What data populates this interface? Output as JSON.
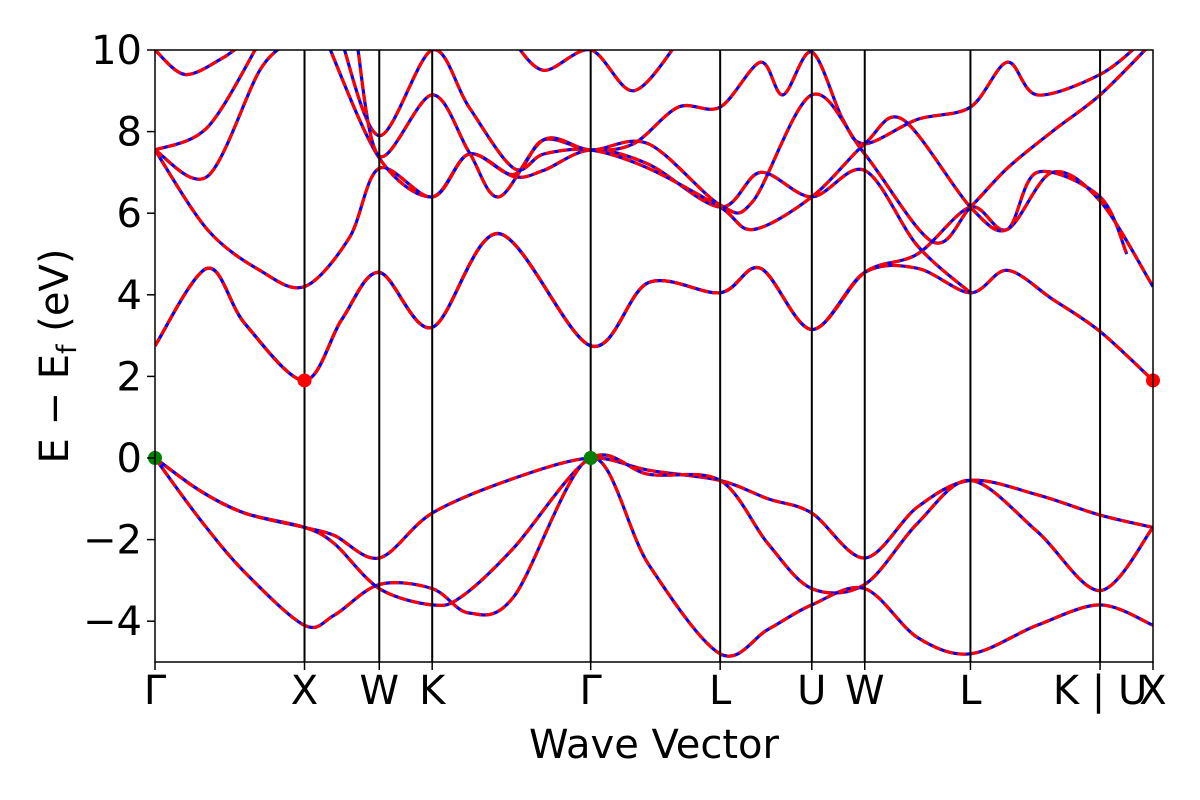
{
  "chart_data": {
    "type": "line",
    "title": "",
    "xlabel": "Wave Vector",
    "ylabel_main": "E − E",
    "ylabel_sub": "f",
    "ylabel_unit": " (eV)",
    "ylim": [
      -5,
      10
    ],
    "yticks": [
      {
        "value": -4,
        "label": "−4"
      },
      {
        "value": -2,
        "label": "−2"
      },
      {
        "value": 0,
        "label": "0"
      },
      {
        "value": 2,
        "label": "2"
      },
      {
        "value": 4,
        "label": "4"
      },
      {
        "value": 6,
        "label": "6"
      },
      {
        "value": 8,
        "label": "8"
      },
      {
        "value": 10,
        "label": "10"
      }
    ],
    "kpath": [
      {
        "label": "Γ",
        "k": 0.0
      },
      {
        "label": "X",
        "k": 1.0
      },
      {
        "label": "W",
        "k": 1.5
      },
      {
        "label": "K",
        "k": 1.854
      },
      {
        "label": "Γ",
        "k": 2.914
      },
      {
        "label": "L",
        "k": 3.78
      },
      {
        "label": "U",
        "k": 4.393
      },
      {
        "label": "W",
        "k": 4.747
      },
      {
        "label": "L",
        "k": 5.454
      },
      {
        "label": "K | U",
        "k": 6.321
      },
      {
        "label": "X",
        "k": 6.675
      }
    ],
    "grid": false,
    "legend": "none",
    "colors": {
      "dft": "#ff0000",
      "fit": "#0000ff",
      "vbm": "#008000",
      "cbm": "#ff0000"
    },
    "markers": [
      {
        "name": "VBM",
        "k": 0.0,
        "e": 0.0
      },
      {
        "name": "VBM",
        "k": 2.914,
        "e": 0.0
      },
      {
        "name": "CBM",
        "k": 1.0,
        "e": 1.9
      },
      {
        "name": "CBM",
        "k": 6.675,
        "e": 1.9
      }
    ],
    "bands": [
      [
        [
          0,
          0
        ],
        [
          0.3,
          -0.8
        ],
        [
          0.6,
          -1.35
        ],
        [
          1.0,
          -1.7
        ],
        [
          1.2,
          -1.9
        ],
        [
          1.5,
          -2.45
        ],
        [
          1.854,
          -1.35
        ],
        [
          2.4,
          -0.5
        ],
        [
          2.914,
          0
        ],
        [
          3.3,
          -0.3
        ],
        [
          3.78,
          -0.55
        ],
        [
          4.1,
          -1.0
        ],
        [
          4.393,
          -1.35
        ],
        [
          4.747,
          -2.45
        ],
        [
          5.1,
          -1.2
        ],
        [
          5.454,
          -0.55
        ],
        [
          5.9,
          -0.9
        ],
        [
          6.321,
          -1.4
        ],
        [
          6.675,
          -1.7
        ]
      ],
      [
        [
          0,
          0
        ],
        [
          0.3,
          -0.8
        ],
        [
          0.6,
          -1.35
        ],
        [
          1.0,
          -1.7
        ],
        [
          1.2,
          -2.1
        ],
        [
          1.5,
          -3.2
        ],
        [
          1.854,
          -3.6
        ],
        [
          2.05,
          -3.4
        ],
        [
          2.4,
          -2.2
        ],
        [
          2.914,
          0
        ],
        [
          3.3,
          -0.4
        ],
        [
          3.78,
          -0.55
        ],
        [
          4.1,
          -2.1
        ],
        [
          4.393,
          -3.2
        ],
        [
          4.747,
          -3.1
        ],
        [
          5.1,
          -1.6
        ],
        [
          5.454,
          -0.55
        ],
        [
          5.9,
          -1.8
        ],
        [
          6.321,
          -3.25
        ],
        [
          6.675,
          -1.7
        ]
      ],
      [
        [
          0,
          0
        ],
        [
          0.3,
          -1.5
        ],
        [
          0.6,
          -2.8
        ],
        [
          1.0,
          -4.1
        ],
        [
          1.2,
          -3.85
        ],
        [
          1.5,
          -3.1
        ],
        [
          1.854,
          -3.2
        ],
        [
          2.1,
          -3.8
        ],
        [
          2.4,
          -3.4
        ],
        [
          2.914,
          0
        ],
        [
          3.3,
          -2.6
        ],
        [
          3.78,
          -4.8
        ],
        [
          4.1,
          -4.2
        ],
        [
          4.393,
          -3.6
        ],
        [
          4.747,
          -3.2
        ],
        [
          5.1,
          -4.4
        ],
        [
          5.454,
          -4.8
        ],
        [
          5.9,
          -4.1
        ],
        [
          6.321,
          -3.6
        ],
        [
          6.675,
          -4.1
        ]
      ],
      [
        [
          0,
          2.75
        ],
        [
          0.35,
          4.65
        ],
        [
          0.6,
          3.3
        ],
        [
          1.0,
          1.9
        ],
        [
          1.25,
          3.4
        ],
        [
          1.5,
          4.55
        ],
        [
          1.854,
          3.2
        ],
        [
          2.3,
          5.5
        ],
        [
          2.914,
          2.75
        ],
        [
          3.3,
          4.3
        ],
        [
          3.78,
          4.05
        ],
        [
          4.05,
          4.65
        ],
        [
          4.393,
          3.15
        ],
        [
          4.747,
          4.55
        ],
        [
          5.1,
          4.65
        ],
        [
          5.454,
          4.05
        ],
        [
          5.7,
          4.6
        ],
        [
          6.0,
          3.9
        ],
        [
          6.321,
          3.1
        ],
        [
          6.675,
          1.9
        ]
      ],
      [
        [
          0,
          2.75
        ],
        [
          0.35,
          4.65
        ],
        [
          0.6,
          3.3
        ],
        [
          1.0,
          1.9
        ],
        [
          1.25,
          3.4
        ],
        [
          1.5,
          4.55
        ],
        [
          1.854,
          3.2
        ],
        [
          2.3,
          5.5
        ],
        [
          2.914,
          2.75
        ],
        [
          3.3,
          4.3
        ],
        [
          3.78,
          4.05
        ],
        [
          4.05,
          4.65
        ],
        [
          4.393,
          3.15
        ],
        [
          4.747,
          4.55
        ],
        [
          5.1,
          5.0
        ],
        [
          5.454,
          6.15
        ],
        [
          5.7,
          5.6
        ],
        [
          6.0,
          7.0
        ],
        [
          6.321,
          6.3
        ],
        [
          6.675,
          4.2
        ]
      ],
      [
        [
          0,
          7.55
        ],
        [
          0.35,
          5.6
        ],
        [
          0.7,
          4.6
        ],
        [
          1.0,
          4.2
        ],
        [
          1.3,
          5.4
        ],
        [
          1.5,
          7.1
        ],
        [
          1.854,
          6.4
        ],
        [
          2.1,
          7.45
        ],
        [
          2.4,
          6.9
        ],
        [
          2.6,
          7.05
        ],
        [
          2.914,
          7.55
        ],
        [
          3.3,
          7.2
        ],
        [
          3.78,
          6.15
        ],
        [
          4.05,
          7.0
        ],
        [
          4.393,
          6.4
        ],
        [
          4.747,
          7.05
        ],
        [
          5.1,
          5.2
        ],
        [
          5.454,
          4.05
        ]
      ],
      [
        [
          0,
          7.55
        ],
        [
          0.35,
          6.9
        ],
        [
          0.7,
          9.5
        ],
        [
          0.9,
          10.2
        ]
      ],
      [
        [
          0,
          7.55
        ],
        [
          0.35,
          8.1
        ],
        [
          0.7,
          10.2
        ]
      ],
      [
        [
          0,
          10
        ],
        [
          0.2,
          9.4
        ],
        [
          0.45,
          9.8
        ],
        [
          0.6,
          10.2
        ]
      ],
      [
        [
          1.15,
          10.2
        ],
        [
          1.5,
          7.35
        ],
        [
          1.854,
          6.4
        ],
        [
          2.1,
          7.45
        ],
        [
          2.4,
          6.95
        ],
        [
          2.6,
          7.8
        ],
        [
          2.914,
          7.55
        ],
        [
          3.2,
          7.7
        ],
        [
          3.5,
          8.6
        ],
        [
          3.78,
          8.6
        ],
        [
          4.05,
          9.7
        ],
        [
          4.2,
          8.9
        ],
        [
          4.393,
          9.95
        ],
        [
          4.6,
          8.3
        ],
        [
          4.747,
          7.7
        ],
        [
          5.1,
          8.3
        ],
        [
          5.454,
          8.6
        ],
        [
          5.7,
          9.7
        ],
        [
          5.9,
          8.9
        ],
        [
          6.321,
          9.4
        ],
        [
          6.6,
          10.2
        ]
      ],
      [
        [
          1.25,
          10.2
        ],
        [
          1.5,
          7.9
        ],
        [
          1.854,
          10
        ],
        [
          2.1,
          8.6
        ],
        [
          2.4,
          7.1
        ],
        [
          2.6,
          7.45
        ],
        [
          2.914,
          7.55
        ],
        [
          3.3,
          7.1
        ],
        [
          3.78,
          6.15
        ],
        [
          4.0,
          5.6
        ],
        [
          4.393,
          6.4
        ],
        [
          4.747,
          7.7
        ],
        [
          5.0,
          8.3
        ],
        [
          5.454,
          6.15
        ],
        [
          5.7,
          5.6
        ],
        [
          5.9,
          7.0
        ],
        [
          6.321,
          6.4
        ],
        [
          6.5,
          5.0
        ]
      ],
      [
        [
          1.35,
          10.2
        ],
        [
          1.5,
          7.4
        ],
        [
          1.854,
          8.9
        ],
        [
          2.1,
          7.5
        ],
        [
          2.3,
          6.4
        ],
        [
          2.6,
          7.8
        ],
        [
          2.914,
          7.55
        ],
        [
          3.3,
          7.7
        ],
        [
          3.78,
          6.2
        ],
        [
          4.0,
          6.3
        ],
        [
          4.393,
          8.9
        ],
        [
          4.747,
          7.45
        ],
        [
          5.2,
          5.3
        ],
        [
          5.454,
          6.15
        ],
        [
          5.7,
          7.1
        ],
        [
          6.0,
          8.0
        ],
        [
          6.321,
          8.9
        ],
        [
          6.675,
          10.2
        ]
      ],
      [
        [
          2.4,
          10.2
        ],
        [
          2.6,
          9.5
        ],
        [
          2.914,
          10
        ],
        [
          3.2,
          9.0
        ],
        [
          3.5,
          10.2
        ]
      ]
    ]
  }
}
